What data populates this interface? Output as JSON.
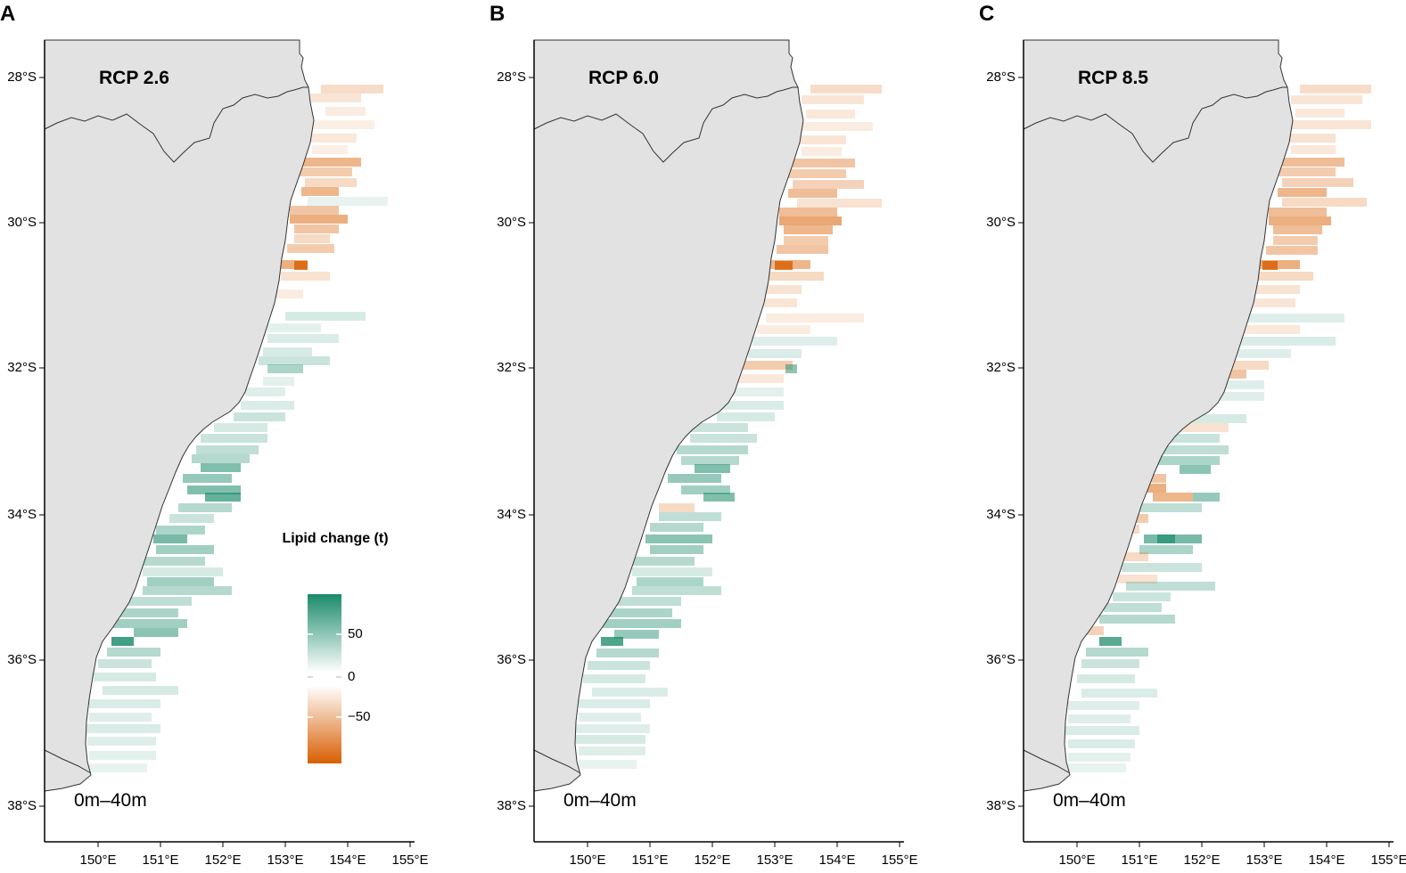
{
  "figure": {
    "legend": {
      "title": "Lipid change (t)",
      "labels": [
        "50",
        "0",
        "−50"
      ],
      "colors": {
        "high": "#1a8a6a",
        "zero": "#ffffff",
        "low": "#d95f02"
      }
    },
    "axes": {
      "lat_labels": [
        "28°S",
        "30°S",
        "32°S",
        "34°S",
        "36°S",
        "38°S"
      ],
      "lon_labels": [
        "150°E",
        "151°E",
        "152°E",
        "153°E",
        "154°E",
        "155°E"
      ]
    },
    "colors": {
      "land": "#e2e2e2",
      "coast": "#333333",
      "positive": "#1a8a6a",
      "negative": "#d95f02"
    },
    "panels": [
      {
        "letter": "A",
        "scenario": "RCP 2.6",
        "depth": "0m–40m"
      },
      {
        "letter": "B",
        "scenario": "RCP 6.0",
        "depth": "0m–40m"
      },
      {
        "letter": "C",
        "scenario": "RCP 8.5",
        "depth": "0m–40m"
      }
    ]
  }
}
